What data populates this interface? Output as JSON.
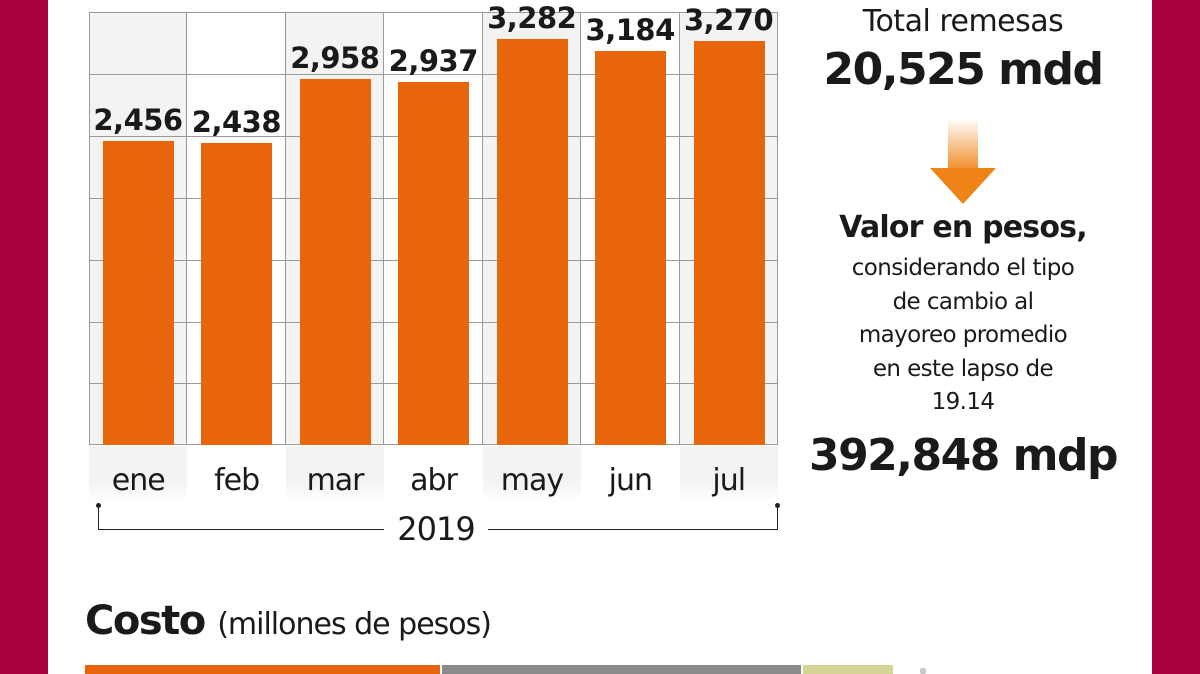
{
  "colors": {
    "frame": "#a8003c",
    "bar": "#e8650c",
    "grid": "#9a9a9a",
    "shade": "#f3f3f1",
    "arrow": "#ee8418",
    "cost_segments": [
      "#e8650c",
      "#8a8a8a",
      "#d6d494"
    ]
  },
  "chart_data": {
    "type": "bar",
    "title": "",
    "categories": [
      "ene",
      "feb",
      "mar",
      "abr",
      "may",
      "jun",
      "jul"
    ],
    "values": [
      2456,
      2438,
      2958,
      2937,
      3282,
      3184,
      3270
    ],
    "value_labels": [
      "2,456",
      "2,438",
      "2,958",
      "2,937",
      "3,282",
      "3,184",
      "3,270"
    ],
    "xlabel": "2019",
    "ylabel": "",
    "units": "millones de dólares",
    "grid": true,
    "legend": null
  },
  "chart": {
    "year": "2019"
  },
  "summary": {
    "total_label": "Total remesas",
    "total_value": "20,525 mdd",
    "valor_title": "Valor en pesos,",
    "valor_desc": "considerando el tipo\nde cambio al\nmayoreo promedio\nen este lapso de\n19.14",
    "valor_value": "392,848 mdp"
  },
  "costo": {
    "title": "Costo",
    "subtitle": "(millones de pesos)"
  }
}
